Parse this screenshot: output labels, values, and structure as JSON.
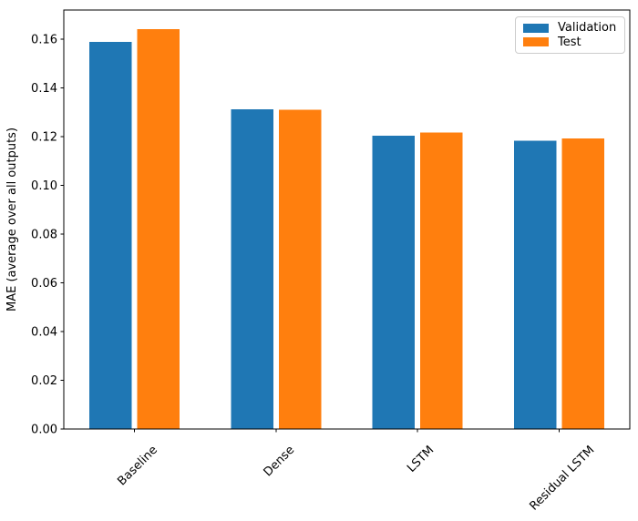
{
  "chart_data": {
    "type": "bar",
    "title": "",
    "xlabel": "",
    "ylabel": "MAE (average over all outputs)",
    "categories": [
      "Baseline",
      "Dense",
      "LSTM",
      "Residual LSTM"
    ],
    "series": [
      {
        "name": "Validation",
        "color": "#1f77b4",
        "values": [
          0.159,
          0.1312,
          0.1204,
          0.1184
        ]
      },
      {
        "name": "Test",
        "color": "#ff7f0e",
        "values": [
          0.1641,
          0.1311,
          0.1217,
          0.1193
        ]
      }
    ],
    "ylim": [
      0,
      0.172
    ],
    "yticks": [
      0.0,
      0.02,
      0.04,
      0.06,
      0.08,
      0.1,
      0.12,
      0.14,
      0.16
    ],
    "ytick_decimals": 2,
    "xtick_rotation_deg": 45,
    "grid": false,
    "legend": {
      "position": "upper right",
      "labels": [
        "Validation",
        "Test"
      ]
    },
    "colors": {
      "axis": "#000000",
      "tick_text": "#000000",
      "legend_border": "#cccccc",
      "background": "#ffffff"
    }
  }
}
